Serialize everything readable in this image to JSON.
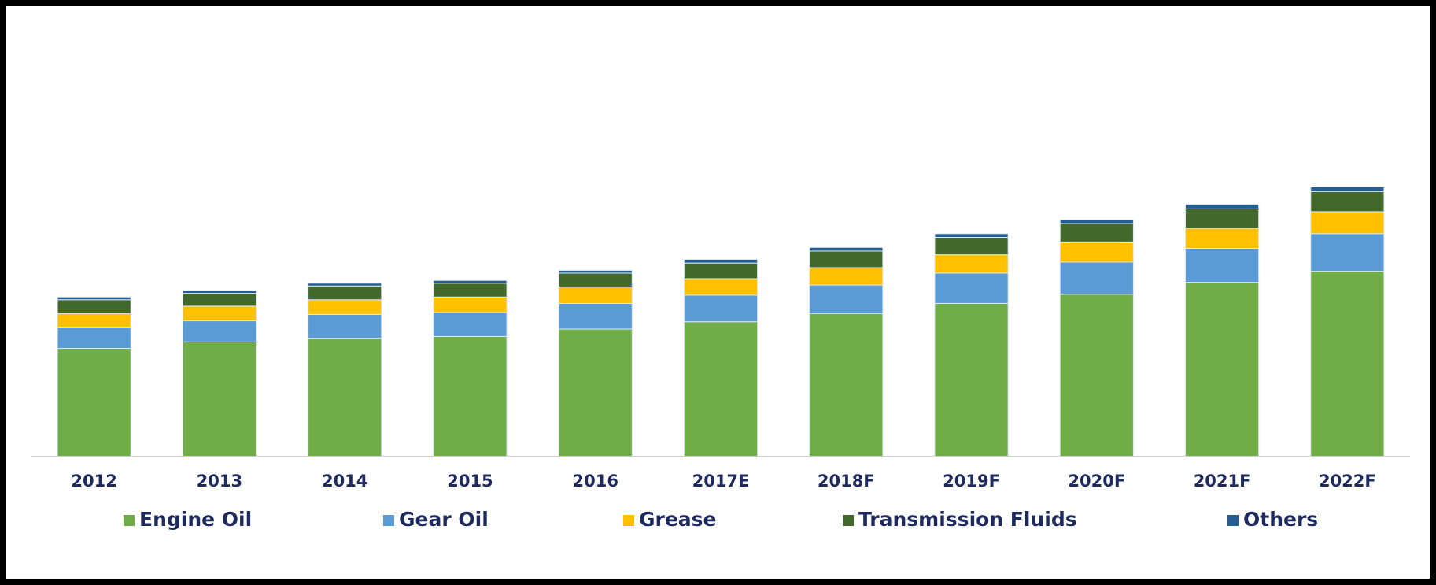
{
  "chart_data": {
    "type": "bar",
    "stacked": true,
    "categories": [
      "2012",
      "2013",
      "2014",
      "2015",
      "2016",
      "2017E",
      "2018F",
      "2019F",
      "2020F",
      "2021F",
      "2022F"
    ],
    "series": [
      {
        "name": "Engine Oil",
        "color": "#70ad47",
        "values": [
          118,
          125,
          129,
          131,
          139,
          147,
          156,
          167,
          177,
          190,
          202
        ]
      },
      {
        "name": "Gear Oil",
        "color": "#5b9bd5",
        "values": [
          23,
          23,
          26,
          26,
          28,
          29,
          31,
          33,
          35,
          37,
          41
        ]
      },
      {
        "name": "Grease",
        "color": "#ffc000",
        "values": [
          15,
          16,
          16,
          17,
          18,
          18,
          19,
          20,
          22,
          22,
          24
        ]
      },
      {
        "name": "Transmission Fluids",
        "color": "#43682b",
        "values": [
          15,
          14,
          15,
          15,
          15,
          17,
          18,
          19,
          20,
          21,
          22
        ]
      },
      {
        "name": "Others",
        "color": "#255e91",
        "values": [
          3,
          3,
          3,
          3,
          3,
          4,
          4,
          4,
          4,
          5,
          5
        ]
      }
    ],
    "ylim": [
      0,
      460
    ],
    "legend": "bottom"
  }
}
